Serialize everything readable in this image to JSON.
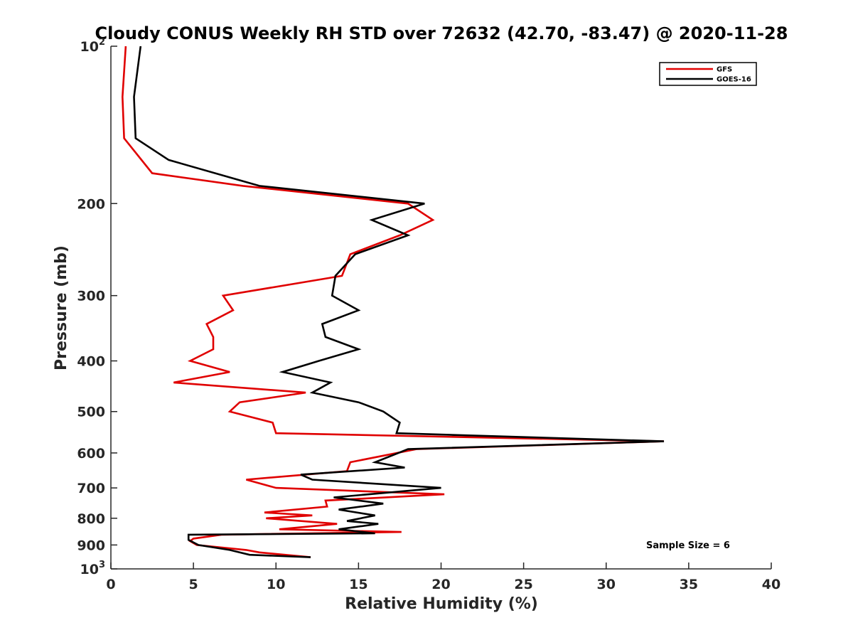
{
  "chart_data": {
    "type": "line",
    "title": "Cloudy CONUS Weekly RH STD over 72632 (42.70, -83.47) @ 2020-11-28",
    "xlabel": "Relative Humidity (%)",
    "ylabel": "Pressure (mb)",
    "xlim": [
      0,
      40
    ],
    "ylim": [
      100,
      1000
    ],
    "y_scale": "log",
    "y_reversed": true,
    "x_ticks": [
      0,
      5,
      10,
      15,
      20,
      25,
      30,
      35,
      40
    ],
    "x_tick_labels": [
      "0",
      "5",
      "10",
      "15",
      "20",
      "25",
      "30",
      "35",
      "40"
    ],
    "y_ticks": [
      100,
      200,
      300,
      400,
      500,
      600,
      700,
      800,
      900,
      1000
    ],
    "y_tick_labels": [
      {
        "base": "10",
        "exp": "2"
      },
      {
        "base": "200",
        "exp": ""
      },
      {
        "base": "300",
        "exp": ""
      },
      {
        "base": "400",
        "exp": ""
      },
      {
        "base": "500",
        "exp": ""
      },
      {
        "base": "600",
        "exp": ""
      },
      {
        "base": "700",
        "exp": ""
      },
      {
        "base": "800",
        "exp": ""
      },
      {
        "base": "900",
        "exp": ""
      },
      {
        "base": "10",
        "exp": "3"
      }
    ],
    "grid": false,
    "legend_position": "top-right",
    "annotation": "Sample Size = 6",
    "series": [
      {
        "name": "GFS",
        "color": "#e00000",
        "points": [
          [
            0.9,
            100
          ],
          [
            0.7,
            125
          ],
          [
            0.8,
            150
          ],
          [
            2.5,
            175
          ],
          [
            8.0,
            185
          ],
          [
            18.0,
            200
          ],
          [
            19.5,
            215
          ],
          [
            17.5,
            230
          ],
          [
            14.5,
            250
          ],
          [
            14.0,
            275
          ],
          [
            6.8,
            300
          ],
          [
            7.4,
            320
          ],
          [
            5.8,
            340
          ],
          [
            6.2,
            360
          ],
          [
            6.2,
            380
          ],
          [
            4.8,
            400
          ],
          [
            7.2,
            420
          ],
          [
            3.8,
            440
          ],
          [
            11.8,
            460
          ],
          [
            7.8,
            480
          ],
          [
            7.2,
            500
          ],
          [
            9.8,
            525
          ],
          [
            10.0,
            550
          ],
          [
            33.5,
            570
          ],
          [
            18.5,
            590
          ],
          [
            14.5,
            625
          ],
          [
            14.3,
            650
          ],
          [
            8.2,
            675
          ],
          [
            10.0,
            700
          ],
          [
            20.2,
            720
          ],
          [
            13.0,
            740
          ],
          [
            13.1,
            760
          ],
          [
            9.3,
            780
          ],
          [
            12.2,
            790
          ],
          [
            9.4,
            800
          ],
          [
            13.7,
            820
          ],
          [
            10.2,
            840
          ],
          [
            17.6,
            850
          ],
          [
            6.7,
            860
          ],
          [
            5.0,
            875
          ],
          [
            4.8,
            885
          ],
          [
            5.2,
            900
          ],
          [
            8.2,
            920
          ],
          [
            9.0,
            930
          ],
          [
            12.1,
            950
          ]
        ]
      },
      {
        "name": "GOES-16",
        "color": "#000000",
        "points": [
          [
            1.8,
            100
          ],
          [
            1.4,
            125
          ],
          [
            1.5,
            150
          ],
          [
            3.5,
            165
          ],
          [
            9.0,
            185
          ],
          [
            19.0,
            200
          ],
          [
            15.8,
            215
          ],
          [
            18.0,
            230
          ],
          [
            14.8,
            250
          ],
          [
            13.6,
            275
          ],
          [
            13.4,
            300
          ],
          [
            15.0,
            320
          ],
          [
            12.8,
            340
          ],
          [
            13.0,
            360
          ],
          [
            15.0,
            380
          ],
          [
            12.6,
            400
          ],
          [
            10.4,
            420
          ],
          [
            13.3,
            440
          ],
          [
            12.2,
            460
          ],
          [
            15.0,
            480
          ],
          [
            16.5,
            500
          ],
          [
            17.5,
            525
          ],
          [
            17.3,
            550
          ],
          [
            33.5,
            570
          ],
          [
            18.0,
            590
          ],
          [
            16.0,
            625
          ],
          [
            17.8,
            640
          ],
          [
            11.5,
            660
          ],
          [
            12.2,
            675
          ],
          [
            20.0,
            700
          ],
          [
            13.5,
            730
          ],
          [
            16.5,
            750
          ],
          [
            13.8,
            770
          ],
          [
            16.0,
            790
          ],
          [
            14.3,
            810
          ],
          [
            16.2,
            820
          ],
          [
            13.8,
            840
          ],
          [
            16.0,
            855
          ],
          [
            4.7,
            860
          ],
          [
            4.7,
            880
          ],
          [
            5.3,
            900
          ],
          [
            7.2,
            920
          ],
          [
            8.4,
            940
          ],
          [
            12.1,
            950
          ]
        ]
      }
    ]
  }
}
